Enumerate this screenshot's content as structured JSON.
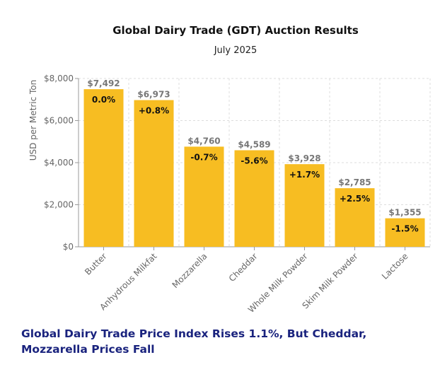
{
  "colors": {
    "bar": "#F7BD22",
    "bar_edge": "#F2B516",
    "grid": "#dddddd",
    "axis": "#999999",
    "headline": "#1a237e"
  },
  "chart_data": {
    "type": "bar",
    "title": "Global Dairy Trade (GDT) Auction Results",
    "subtitle": "July 2025",
    "xlabel": "",
    "ylabel": "USD per Metric Ton",
    "ylim": [
      0,
      8000
    ],
    "yticks": [
      0,
      2000,
      4000,
      6000,
      8000
    ],
    "ytick_labels": [
      "$0",
      "$2,000",
      "$4,000",
      "$6,000",
      "$8,000"
    ],
    "grid": true,
    "categories": [
      "Butter",
      "Anhydrous Milkfat",
      "Mozzarella",
      "Cheddar",
      "Whole Milk Powder",
      "Skim Milk Powder",
      "Lactose"
    ],
    "values": [
      7492,
      6973,
      4760,
      4589,
      3928,
      2785,
      1355
    ],
    "value_labels": [
      "$7,492",
      "$6,973",
      "$4,760",
      "$4,589",
      "$3,928",
      "$2,785",
      "$1,355"
    ],
    "change_labels": [
      "0.0%",
      "+0.8%",
      "-0.7%",
      "-5.6%",
      "+1.7%",
      "+2.5%",
      "-1.5%"
    ]
  },
  "headline": "Global Dairy Trade Price Index Rises 1.1%, But Cheddar, Mozzarella Prices Fall"
}
